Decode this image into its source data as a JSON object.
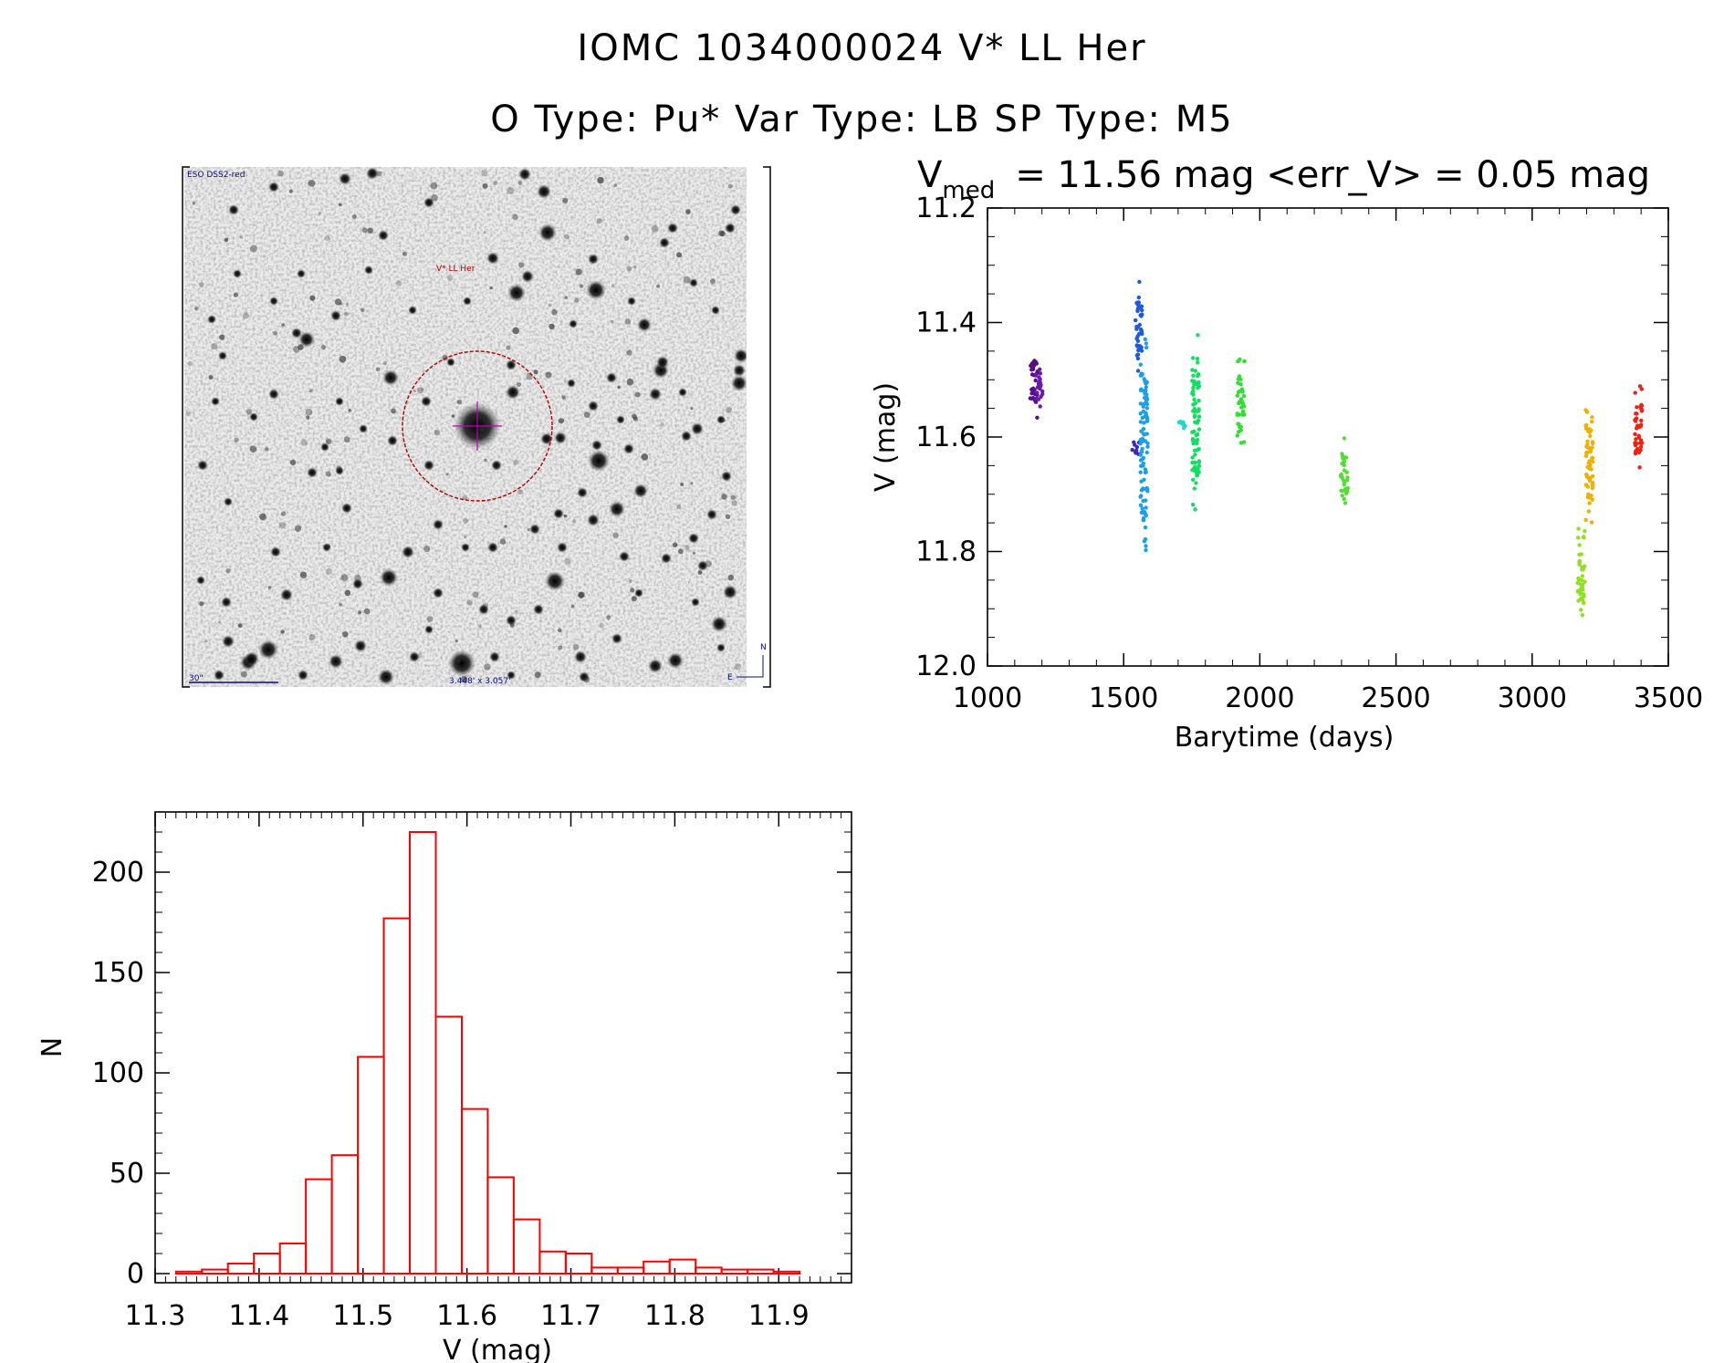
{
  "header": {
    "line1": "IOMC 1034000024    V* LL Her",
    "line2": "O Type: Pu*   Var Type: LB   SP Type: M5"
  },
  "image_panel": {
    "survey_label": "ESO DSS2-red",
    "target_label": "V* LL Her",
    "scale_label": "30\"",
    "size_label": "3.448' x 3.057'",
    "compass_north": "N",
    "compass_east": "E"
  },
  "chart_data": [
    {
      "type": "scatter",
      "title_prefix": "V",
      "title_subscript": "med",
      "title_rest": "= 11.56 mag <err_V> = 0.05 mag",
      "xlabel": "Barytime (days)",
      "ylabel": "V (mag)",
      "xlim": [
        1000,
        3500
      ],
      "ylim": [
        12.0,
        11.2
      ],
      "y_inverted": true,
      "xticks": [
        1000,
        1500,
        2000,
        2500,
        3000,
        3500
      ],
      "yticks": [
        11.2,
        11.4,
        11.6,
        11.8,
        12.0
      ],
      "ytick_labels": [
        "11.2",
        "11.4",
        "11.6",
        "11.8",
        "12.0"
      ],
      "grid": false,
      "series": [
        {
          "color": "#5a0a8a",
          "x": 1170,
          "ymin": 11.44,
          "ymax": 11.57
        },
        {
          "color": "#6a1aa8",
          "x": 1190,
          "ymin": 11.47,
          "ymax": 11.55
        },
        {
          "color": "#3a2ac0",
          "x": 1545,
          "ymin": 11.6,
          "ymax": 11.64
        },
        {
          "color": "#1e5ae0",
          "x": 1555,
          "ymin": 11.32,
          "ymax": 11.5
        },
        {
          "color": "#1aa0e8",
          "x": 1575,
          "ymin": 11.42,
          "ymax": 11.81
        },
        {
          "color": "#20d8d0",
          "x": 1715,
          "ymin": 11.56,
          "ymax": 11.59
        },
        {
          "color": "#10e060",
          "x": 1765,
          "ymin": 11.42,
          "ymax": 11.73
        },
        {
          "color": "#30e030",
          "x": 1930,
          "ymin": 11.46,
          "ymax": 11.62
        },
        {
          "color": "#50e030",
          "x": 2310,
          "ymin": 11.6,
          "ymax": 11.73
        },
        {
          "color": "#90e020",
          "x": 3180,
          "ymin": 11.76,
          "ymax": 11.93
        },
        {
          "color": "#f0b000",
          "x": 3210,
          "ymin": 11.54,
          "ymax": 11.76
        },
        {
          "color": "#f02010",
          "x": 3390,
          "ymin": 11.51,
          "ymax": 11.66
        }
      ]
    },
    {
      "type": "bar",
      "title": "",
      "xlabel": "V (mag)",
      "ylabel": "N",
      "xlim": [
        11.3,
        11.97
      ],
      "ylim": [
        0,
        220
      ],
      "xticks": [
        11.3,
        11.4,
        11.5,
        11.6,
        11.7,
        11.8,
        11.9
      ],
      "xtick_labels": [
        "11.3",
        "11.4",
        "11.5",
        "11.6",
        "11.7",
        "11.8",
        "11.9"
      ],
      "yticks": [
        0,
        50,
        100,
        150,
        200
      ],
      "ytick_labels": [
        "0",
        "50",
        "100",
        "150",
        "200"
      ],
      "bin_width": 0.025,
      "bin_start": 11.32,
      "values": [
        1,
        2,
        5,
        10,
        15,
        47,
        59,
        108,
        177,
        220,
        128,
        82,
        48,
        27,
        11,
        10,
        3,
        3,
        6,
        7,
        3,
        2,
        2,
        1
      ],
      "bar_color": "#ff0000"
    }
  ]
}
